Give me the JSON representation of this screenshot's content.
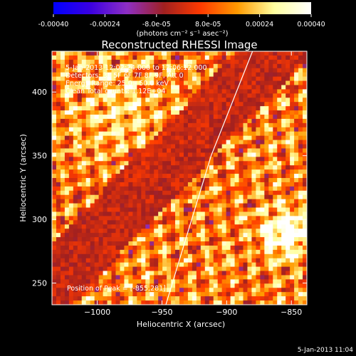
{
  "chart_data": {
    "type": "heatmap",
    "title": "Reconstructed RHESSI Image",
    "colorbar": {
      "ticks": [
        "-0.00040",
        "-0.00024",
        "-8.0e-05",
        "8.0e-05",
        "0.00024",
        "0.00040"
      ],
      "unit_label": "(photons cm⁻² s⁻¹ asec⁻²)",
      "range": [
        -0.0004,
        0.0004
      ],
      "colors": [
        "#0000ff",
        "#3a00e0",
        "#8e2fc4",
        "#a02020",
        "#ff3a00",
        "#ff9a00",
        "#ffffa0",
        "#ffffff"
      ]
    },
    "xlabel": "Heliocentric X (arcsec)",
    "ylabel": "Heliocentric Y (arcsec)",
    "xlim": [
      -1035,
      -838
    ],
    "ylim": [
      233,
      432
    ],
    "xticks": [
      -1000,
      -950,
      -900,
      -850
    ],
    "xtick_labels": [
      "−1000",
      "−950",
      "−900",
      "−850"
    ],
    "yticks": [
      250,
      300,
      350,
      400
    ],
    "ytick_labels": [
      "250",
      "300",
      "350",
      "400"
    ],
    "limb_curve": [
      [
        -947,
        233
      ],
      [
        -930,
        290
      ],
      [
        -912,
        350
      ],
      [
        -880,
        432
      ]
    ],
    "info_lines": [
      "5-Jan-2013 12:02:24.000 to 12:06:12.000",
      "Detectors: 3F 5F 6F 7F 8F 9F, Att 0",
      "Energy Range: 25.0 - 50.0 keV",
      "Clean     Total counts: 1.12E+04"
    ],
    "peak_label": "Position of Peak = [-855,281]",
    "peak": [
      -855,
      281
    ]
  },
  "footer": {
    "timestamp": "5-Jan-2013 11:04"
  }
}
